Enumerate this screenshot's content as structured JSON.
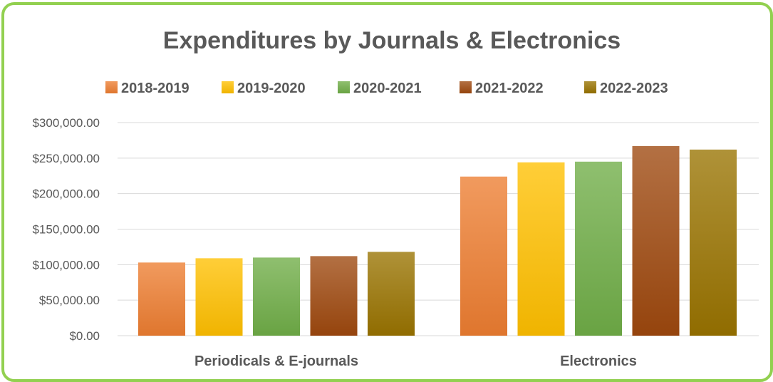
{
  "chart_data": {
    "type": "bar",
    "title": "Expenditures by Journals & Electronics",
    "xlabel": "",
    "ylabel": "",
    "categories": [
      "Periodicals & E-journals",
      "Electronics"
    ],
    "series": [
      {
        "name": "2018-2019",
        "values": [
          103000,
          224000
        ],
        "color": "#ed7d31"
      },
      {
        "name": "2019-2020",
        "values": [
          109000,
          244000
        ],
        "color": "#ffc000"
      },
      {
        "name": "2020-2021",
        "values": [
          110000,
          245000
        ],
        "color": "#70ad47"
      },
      {
        "name": "2021-2022",
        "values": [
          112000,
          267000
        ],
        "color": "#9e480e"
      },
      {
        "name": "2022-2023",
        "values": [
          118000,
          262000
        ],
        "color": "#997300"
      }
    ],
    "ylim": [
      0,
      300000
    ],
    "yticks": [
      0,
      50000,
      100000,
      150000,
      200000,
      250000,
      300000
    ],
    "ytick_labels": [
      "$0.00",
      "$50,000.00",
      "$100,000.00",
      "$150,000.00",
      "$200,000.00",
      "$250,000.00",
      "$300,000.00"
    ],
    "grid": true,
    "legend_position": "top"
  },
  "colors": {
    "frame_border": "#92d050",
    "gridline": "#d9d9d9",
    "text": "#595959"
  }
}
